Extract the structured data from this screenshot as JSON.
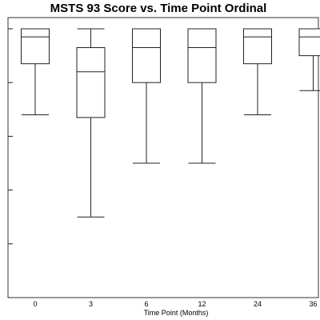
{
  "chart_data": {
    "type": "boxplot",
    "title": "MSTS 93 Score vs. Time Point Ordinal",
    "xlabel": "Time Point (Months)",
    "ylabel": "",
    "categories": [
      "0",
      "3",
      "6",
      "12",
      "24",
      "36"
    ],
    "ylim": [
      0,
      100
    ],
    "grid": false,
    "boxes": [
      {
        "category": "0",
        "min": 68,
        "q1": 87,
        "median": 97,
        "q3": 100,
        "max": 100
      },
      {
        "category": "3",
        "min": 30,
        "q1": 67,
        "median": 84,
        "q3": 93,
        "max": 100
      },
      {
        "category": "6",
        "min": 50,
        "q1": 80,
        "median": 93,
        "q3": 100,
        "max": 100
      },
      {
        "category": "12",
        "min": 50,
        "q1": 80,
        "median": 93,
        "q3": 100,
        "max": 100
      },
      {
        "category": "24",
        "min": 68,
        "q1": 87,
        "median": 97,
        "q3": 100,
        "max": 100
      },
      {
        "category": "36",
        "min": 77,
        "q1": 90,
        "median": 97,
        "q3": 100,
        "max": 100
      }
    ]
  }
}
